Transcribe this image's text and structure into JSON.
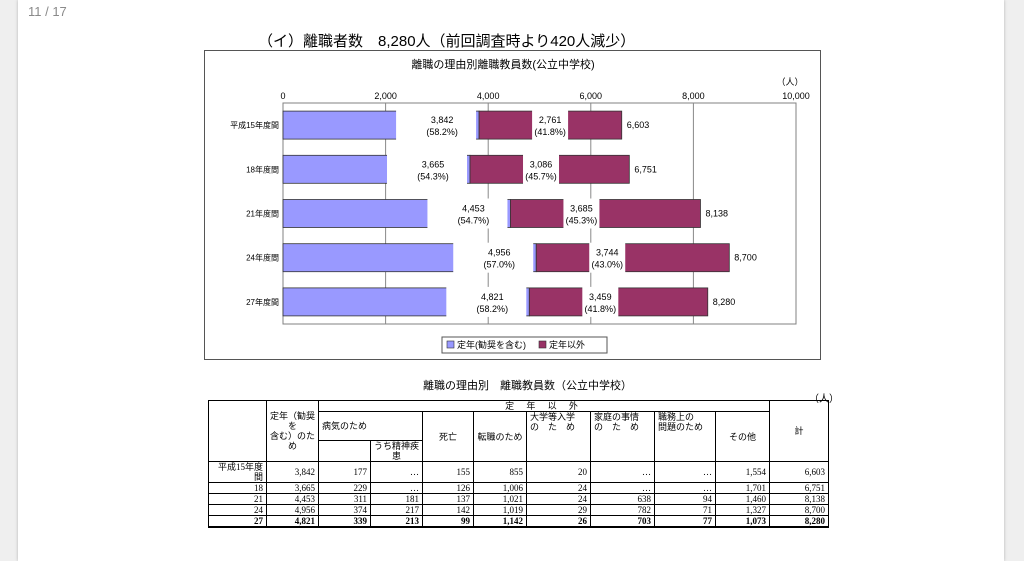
{
  "viewer": {
    "page_counter": "11 / 17"
  },
  "heading": "（イ）離職者数　8,280人（前回調査時より420人減少）",
  "chart_data": {
    "type": "bar",
    "orientation": "horizontal",
    "stacked": true,
    "title": "離職の理由別離職教員数(公立中学校)",
    "unit_label": "（人）",
    "xlim": [
      0,
      10000
    ],
    "x_ticks": [
      "0",
      "2,000",
      "4,000",
      "6,000",
      "8,000",
      "10,000"
    ],
    "x_tick_values": [
      0,
      2000,
      4000,
      6000,
      8000,
      10000
    ],
    "grid": true,
    "legend_position": "bottom",
    "categories": [
      "平成15年度間",
      "18年度間",
      "21年度間",
      "24年度間",
      "27年度間"
    ],
    "series": [
      {
        "name": "定年(勧奨を含む)",
        "color": "#9999ff",
        "values": [
          3842,
          3665,
          4453,
          4956,
          4821
        ],
        "labels": [
          "3,842",
          "3,665",
          "4,453",
          "4,956",
          "4,821"
        ],
        "percents": [
          "(58.2%)",
          "(54.3%)",
          "(54.7%)",
          "(57.0%)",
          "(58.2%)"
        ]
      },
      {
        "name": "定年以外",
        "color": "#993366",
        "values": [
          2761,
          3086,
          3685,
          3744,
          3459
        ],
        "labels": [
          "2,761",
          "3,086",
          "3,685",
          "3,744",
          "3,459"
        ],
        "percents": [
          "(41.8%)",
          "(45.7%)",
          "(45.3%)",
          "(43.0%)",
          "(41.8%)"
        ]
      }
    ],
    "totals": [
      6603,
      6751,
      8138,
      8700,
      8280
    ],
    "total_labels": [
      "6,603",
      "6,751",
      "8,138",
      "8,700",
      "8,280"
    ]
  },
  "table": {
    "title": "離職の理由別　離職教員数（公立中学校）",
    "unit": "（人）",
    "headers": {
      "teinen": [
        "定年（勧奨を",
        "含む）のため"
      ],
      "teinen_igai": "定 年 以 外",
      "byouki": "病気のため",
      "seishin": "うち精神疾患",
      "shibou": "死亡",
      "tenshoku": "転職のため",
      "daigaku": [
        "大学等入学",
        "の　た　め"
      ],
      "katei": [
        "家庭の事情",
        "の　た　め"
      ],
      "shokumu": [
        "職務上の",
        "問題のため"
      ],
      "sonota": "その他",
      "kei": "計"
    },
    "rows": [
      [
        "平成15年度間",
        "3,842",
        "177",
        "…",
        "155",
        "855",
        "20",
        "…",
        "…",
        "1,554",
        "6,603"
      ],
      [
        "18",
        "3,665",
        "229",
        "…",
        "126",
        "1,006",
        "24",
        "…",
        "…",
        "1,701",
        "6,751"
      ],
      [
        "21",
        "4,453",
        "311",
        "181",
        "137",
        "1,021",
        "24",
        "638",
        "94",
        "1,460",
        "8,138"
      ],
      [
        "24",
        "4,956",
        "374",
        "217",
        "142",
        "1,019",
        "29",
        "782",
        "71",
        "1,327",
        "8,700"
      ],
      [
        "27",
        "4,821",
        "339",
        "213",
        "99",
        "1,142",
        "26",
        "703",
        "77",
        "1,073",
        "8,280"
      ]
    ]
  }
}
